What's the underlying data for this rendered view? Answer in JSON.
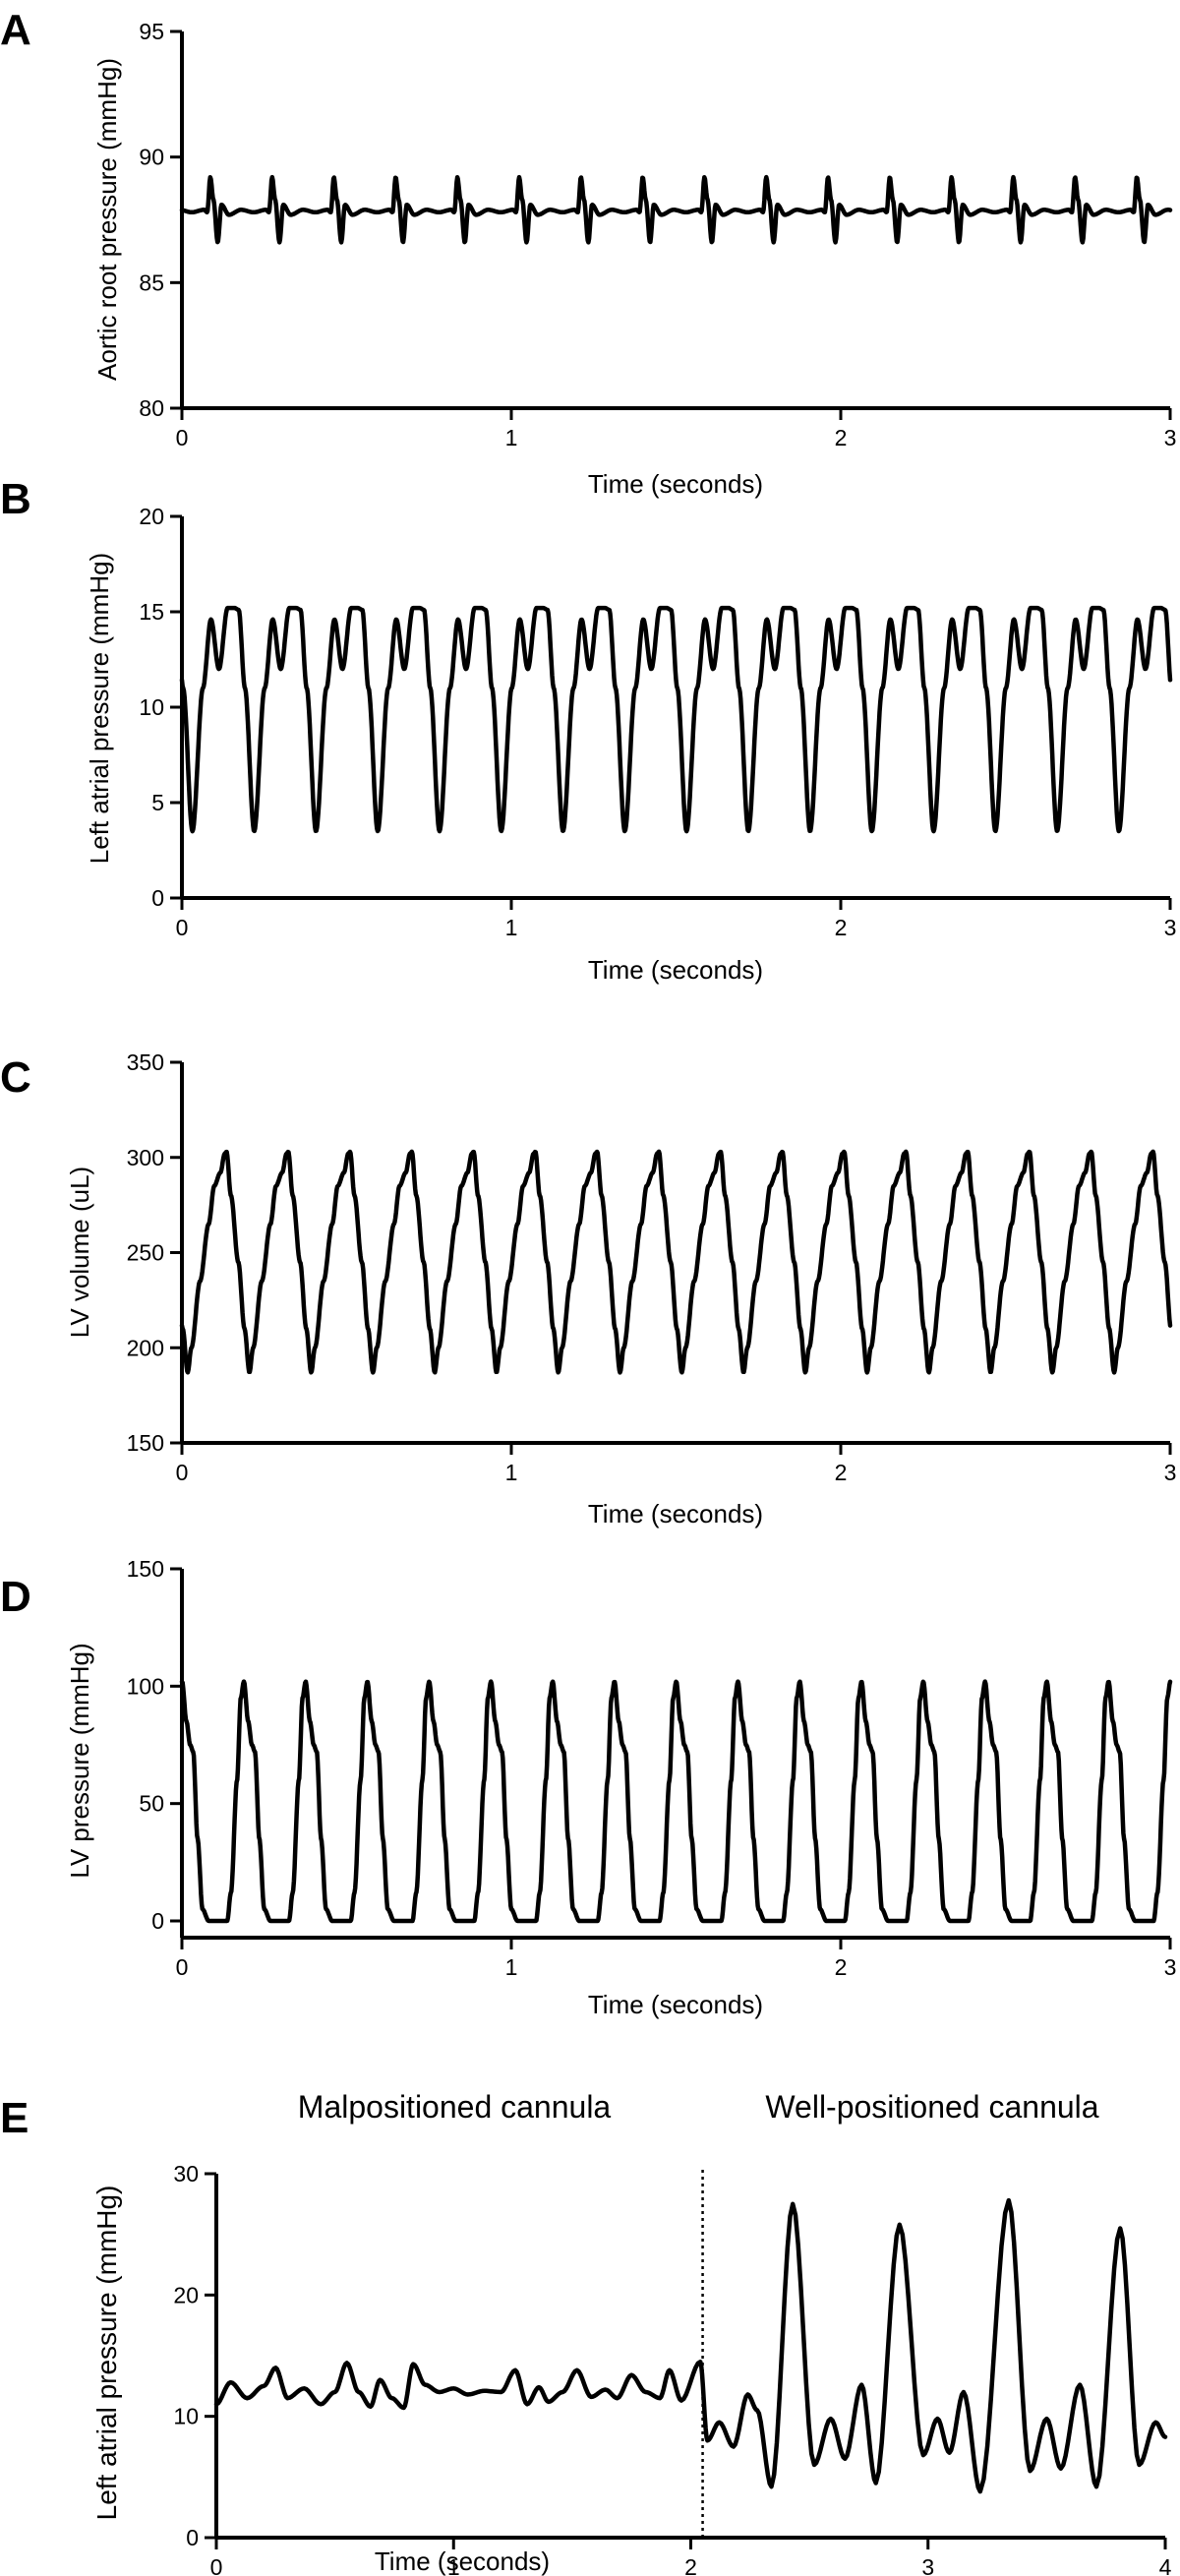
{
  "chart_data": [
    {
      "panel": "A",
      "type": "line",
      "title": "",
      "xlabel": "Time (seconds)",
      "ylabel": "Aortic root pressure (mmHg)",
      "xlim": [
        0,
        3
      ],
      "ylim": [
        80,
        95
      ],
      "xticks": [
        0,
        1,
        2,
        3
      ],
      "yticks": [
        80,
        85,
        90,
        95
      ],
      "grid": false,
      "series": [
        {
          "period": 0.1875,
          "phase": 0.12,
          "baseline": 87.9,
          "waveform": [
            [
              0,
              87.9
            ],
            [
              0.05,
              87.8
            ],
            [
              0.1,
              89.2
            ],
            [
              0.15,
              88.3
            ],
            [
              0.22,
              86.6
            ],
            [
              0.28,
              88.1
            ],
            [
              0.4,
              87.7
            ],
            [
              0.6,
              87.9
            ],
            [
              0.8,
              87.8
            ],
            [
              1,
              87.9
            ]
          ]
        }
      ]
    },
    {
      "panel": "B",
      "type": "line",
      "title": "",
      "xlabel": "Time (seconds)",
      "ylabel": "Left atrial pressure (mmHg)",
      "xlim": [
        0,
        3
      ],
      "ylim": [
        0,
        20
      ],
      "xticks": [
        0,
        1,
        2,
        3
      ],
      "yticks": [
        0,
        5,
        10,
        15,
        20
      ],
      "grid": false,
      "series": [
        {
          "period": 0.1875,
          "phase": 0.015,
          "baseline": 12,
          "waveform": [
            [
              0,
              15.1
            ],
            [
              0.1,
              11
            ],
            [
              0.25,
              3.5
            ],
            [
              0.42,
              11
            ],
            [
              0.55,
              14.6
            ],
            [
              0.68,
              12
            ],
            [
              0.82,
              15.2
            ],
            [
              0.93,
              15.2
            ],
            [
              1,
              15.1
            ]
          ]
        }
      ]
    },
    {
      "panel": "C",
      "type": "line",
      "title": "",
      "xlabel": "Time (seconds)",
      "ylabel": "LV volume (uL)",
      "xlim": [
        0,
        3
      ],
      "ylim": [
        150,
        350
      ],
      "xticks": [
        0,
        1,
        2,
        3
      ],
      "yticks": [
        150,
        200,
        250,
        300,
        350
      ],
      "grid": false,
      "series": [
        {
          "period": 0.1875,
          "phase": 0.17,
          "baseline": 240,
          "waveform": [
            [
              0,
              187
            ],
            [
              0.06,
              200
            ],
            [
              0.2,
              235
            ],
            [
              0.34,
              265
            ],
            [
              0.43,
              285
            ],
            [
              0.53,
              292
            ],
            [
              0.6,
              302
            ],
            [
              0.63,
              303
            ],
            [
              0.7,
              280
            ],
            [
              0.82,
              245
            ],
            [
              0.92,
              210
            ],
            [
              1,
              187
            ]
          ]
        }
      ]
    },
    {
      "panel": "D",
      "type": "line",
      "title": "",
      "xlabel": "Time (seconds)",
      "ylabel": "LV pressure (mmHg)",
      "xlim": [
        0,
        3
      ],
      "ylim": [
        -10,
        150
      ],
      "xticks": [
        0,
        1,
        2,
        3
      ],
      "yticks": [
        0,
        50,
        100,
        150
      ],
      "grid": false,
      "series": [
        {
          "period": 0.1875,
          "phase": 0.05,
          "baseline": 0,
          "waveform": [
            [
              0,
              0
            ],
            [
              0.06,
              12
            ],
            [
              0.16,
              60
            ],
            [
              0.22,
              95
            ],
            [
              0.27,
              102
            ],
            [
              0.34,
              85
            ],
            [
              0.4,
              75
            ],
            [
              0.45,
              72
            ],
            [
              0.52,
              35
            ],
            [
              0.6,
              5
            ],
            [
              0.7,
              0
            ],
            [
              1,
              0
            ]
          ]
        }
      ]
    },
    {
      "panel": "E",
      "type": "line",
      "title": "",
      "xlabel": "Time (seconds)",
      "ylabel": "Left atrial pressure (mmHg)",
      "xlim": [
        0,
        4
      ],
      "ylim": [
        0,
        30
      ],
      "xticks": [
        0,
        1,
        2,
        3,
        4
      ],
      "yticks": [
        0,
        10,
        20,
        30
      ],
      "grid": false,
      "annotations": [
        "Malpositioned cannula",
        "Well-positioned cannula"
      ],
      "divider_x": 2.05,
      "series": [
        {
          "points": [
            [
              0,
              11
            ],
            [
              0.06,
              12.8
            ],
            [
              0.13,
              11.5
            ],
            [
              0.2,
              12.5
            ],
            [
              0.25,
              14
            ],
            [
              0.3,
              11.5
            ],
            [
              0.37,
              12.3
            ],
            [
              0.44,
              11
            ],
            [
              0.5,
              12
            ],
            [
              0.55,
              14.4
            ],
            [
              0.6,
              12
            ],
            [
              0.65,
              10.8
            ],
            [
              0.69,
              13
            ],
            [
              0.74,
              11.5
            ],
            [
              0.79,
              10.7
            ],
            [
              0.83,
              14.3
            ],
            [
              0.88,
              12.6
            ],
            [
              0.94,
              12
            ],
            [
              1,
              12.3
            ],
            [
              1.06,
              11.8
            ],
            [
              1.13,
              12.1
            ],
            [
              1.2,
              12
            ],
            [
              1.26,
              13.8
            ],
            [
              1.31,
              11
            ],
            [
              1.36,
              12.4
            ],
            [
              1.4,
              11.2
            ],
            [
              1.46,
              12
            ],
            [
              1.52,
              13.8
            ],
            [
              1.58,
              11.6
            ],
            [
              1.64,
              12.2
            ],
            [
              1.69,
              11.5
            ],
            [
              1.75,
              13.4
            ],
            [
              1.81,
              12
            ],
            [
              1.87,
              11.5
            ],
            [
              1.91,
              13.8
            ],
            [
              1.96,
              11.3
            ],
            [
              2.04,
              14.5
            ],
            [
              2.07,
              8
            ],
            [
              2.12,
              9.5
            ],
            [
              2.18,
              7.5
            ],
            [
              2.24,
              11.8
            ],
            [
              2.28,
              10.5
            ],
            [
              2.34,
              4.2
            ],
            [
              2.43,
              27.5
            ],
            [
              2.52,
              6
            ],
            [
              2.59,
              9.8
            ],
            [
              2.65,
              6.5
            ],
            [
              2.72,
              12.6
            ],
            [
              2.78,
              4.5
            ],
            [
              2.88,
              25.8
            ],
            [
              2.98,
              6.8
            ],
            [
              3.04,
              9.8
            ],
            [
              3.09,
              7
            ],
            [
              3.15,
              12
            ],
            [
              3.22,
              3.8
            ],
            [
              3.34,
              27.8
            ],
            [
              3.43,
              5.5
            ],
            [
              3.5,
              9.8
            ],
            [
              3.56,
              5.7
            ],
            [
              3.64,
              12.6
            ],
            [
              3.71,
              4.2
            ],
            [
              3.81,
              25.5
            ],
            [
              3.89,
              6
            ],
            [
              3.96,
              9.5
            ],
            [
              4,
              8.3
            ]
          ]
        }
      ]
    }
  ]
}
